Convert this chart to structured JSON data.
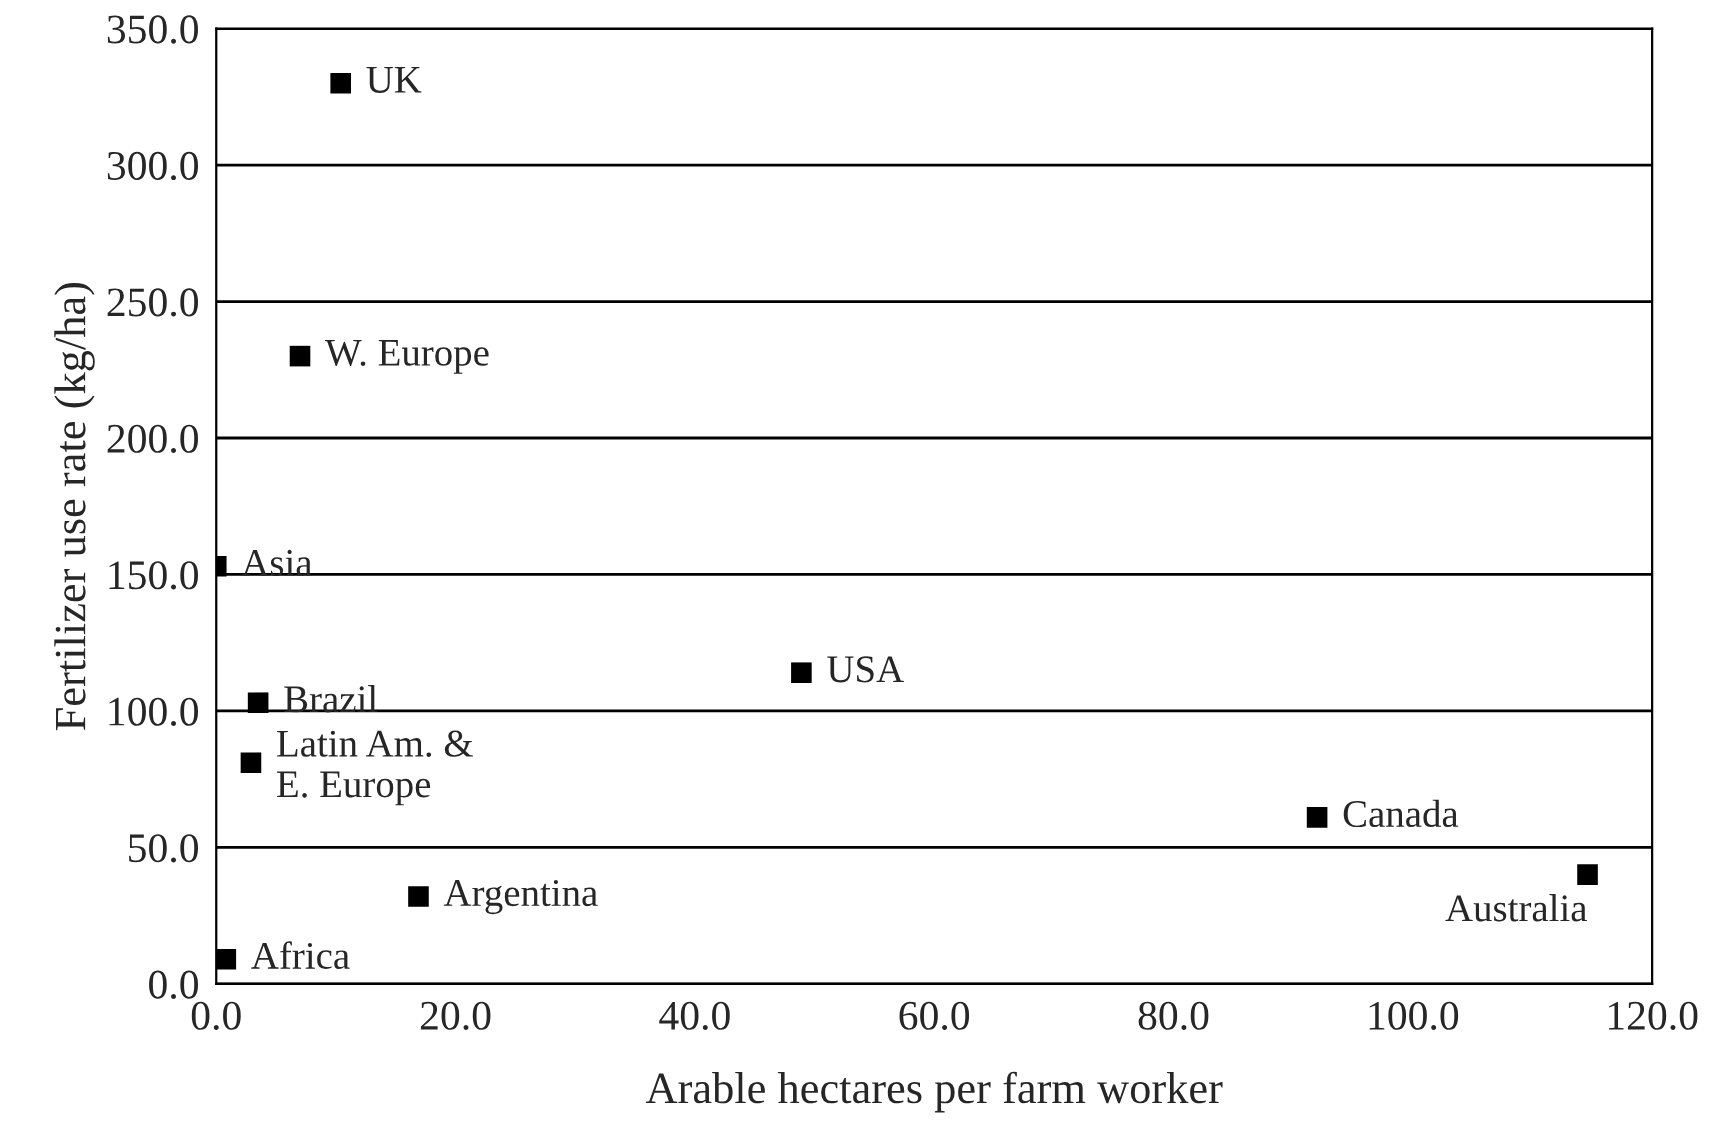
{
  "chart_data": {
    "type": "scatter",
    "xlabel": "Arable hectares per farm worker",
    "ylabel": "Fertilizer use rate (kg/ha)",
    "x": [
      10.4,
      7.0,
      0.0,
      3.5,
      48.9,
      2.9,
      92.0,
      114.6,
      16.9,
      0.8
    ],
    "values": [
      330,
      230,
      153,
      103,
      114,
      81,
      61,
      40,
      32,
      9
    ],
    "color": "#000000",
    "marker": "square",
    "annotations": [
      {
        "text": "UK",
        "x": 10.4,
        "y": 330
      },
      {
        "text": "W. Europe",
        "x": 7.0,
        "y": 230
      },
      {
        "text": "Asia",
        "x": 0.0,
        "y": 153
      },
      {
        "text": "Brazil",
        "x": 3.5,
        "y": 103
      },
      {
        "text": "USA",
        "x": 48.9,
        "y": 114
      },
      {
        "text": "Latin Am. &\nE. Europe",
        "x": 2.9,
        "y": 81
      },
      {
        "text": "Canada",
        "x": 92.0,
        "y": 61
      },
      {
        "text": "Australia",
        "x": 114.6,
        "y": 40
      },
      {
        "text": "Argentina",
        "x": 16.9,
        "y": 32
      },
      {
        "text": "Africa",
        "x": 0.8,
        "y": 9
      }
    ],
    "xlim": [
      0,
      120
    ],
    "xticks": [
      {
        "value": 0,
        "label": "0.0"
      },
      {
        "value": 20,
        "label": "20.0"
      },
      {
        "value": 40,
        "label": "40.0"
      },
      {
        "value": 60,
        "label": "60.0"
      },
      {
        "value": 80,
        "label": "80.0"
      },
      {
        "value": 100,
        "label": "100.0"
      },
      {
        "value": 120,
        "label": "120.0"
      }
    ],
    "ylim": [
      0,
      350
    ],
    "yticks": [
      {
        "value": 0,
        "label": "0.0"
      },
      {
        "value": 50,
        "label": "50.0"
      },
      {
        "value": 100,
        "label": "100.0"
      },
      {
        "value": 150,
        "label": "150.0"
      },
      {
        "value": 200,
        "label": "200.0"
      },
      {
        "value": 250,
        "label": "250.0"
      },
      {
        "value": 300,
        "label": "300.0"
      },
      {
        "value": 350,
        "label": "350.0"
      }
    ],
    "grid": "y"
  }
}
